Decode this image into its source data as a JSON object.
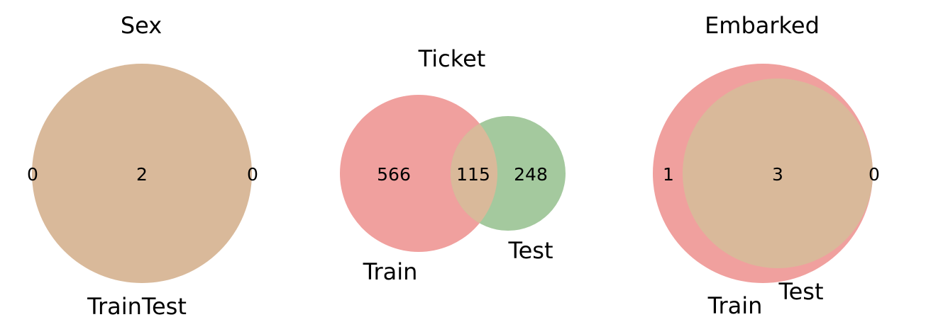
{
  "colors": {
    "train": "#f0a09e",
    "test": "#a4c99e",
    "overlap": "#d9b99a"
  },
  "chart_data": [
    {
      "type": "venn",
      "title": "Sex",
      "set_labels": [
        "Train",
        "Test"
      ],
      "set_labels_display": "TrainTest",
      "counts": {
        "train_only": "0",
        "intersection": "2",
        "test_only": "0"
      }
    },
    {
      "type": "venn",
      "title": "Ticket",
      "set_labels": [
        "Train",
        "Test"
      ],
      "counts": {
        "train_only": "566",
        "intersection": "115",
        "test_only": "248"
      }
    },
    {
      "type": "venn",
      "title": "Embarked",
      "set_labels": [
        "Train",
        "Test"
      ],
      "counts": {
        "train_only": "1",
        "intersection": "3",
        "test_only": "0"
      }
    }
  ]
}
